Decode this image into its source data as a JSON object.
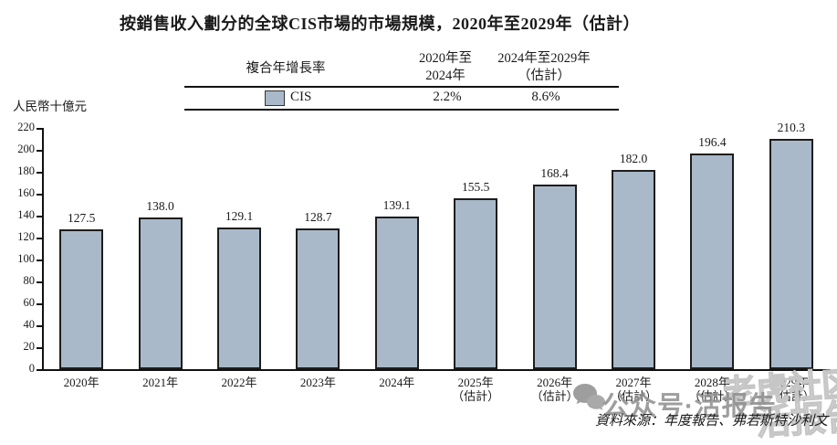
{
  "title": "按銷售收入劃分的全球CIS市場的市場規模，2020年至2029年（估計）",
  "cagr_table": {
    "header_label": "複合年增長率",
    "col1_line1": "2020年至",
    "col1_line2": "2024年",
    "col2_line1": "2024年至2029年",
    "col2_line2": "（估計）",
    "row": {
      "series": "CIS",
      "col1": "2.2%",
      "col2": "8.6%"
    }
  },
  "chart_data": {
    "type": "bar",
    "title": "按銷售收入劃分的全球CIS市場的市場規模，2020年至2029年（估計）",
    "unit_label": "人民幣十億元",
    "categories": [
      "2020年",
      "2021年",
      "2022年",
      "2023年",
      "2024年",
      "2025年",
      "2026年",
      "2027年",
      "2028年",
      "2029年"
    ],
    "sublabels": [
      "",
      "",
      "",
      "",
      "",
      "（估計）",
      "（估計）",
      "（估計）",
      "（估計）",
      "（估計）"
    ],
    "values": [
      127.5,
      138.0,
      129.1,
      128.7,
      139.1,
      155.5,
      168.4,
      182.0,
      196.4,
      210.3
    ],
    "ylim": [
      0,
      220
    ],
    "ytick_step": 20,
    "grid": false,
    "legend_position": "table-top",
    "series_name": "CIS",
    "bar_fill": "#a9b9c9",
    "bar_border": "#1d1d1d"
  },
  "watermark": {
    "icon": "chat-bubbles-icon",
    "text": "公众号·活报告"
  },
  "ghost_watermark": {
    "line1": "老虎社区",
    "line2": "活报告"
  },
  "source": "資料來源：年度報告、弗若斯特沙利文"
}
